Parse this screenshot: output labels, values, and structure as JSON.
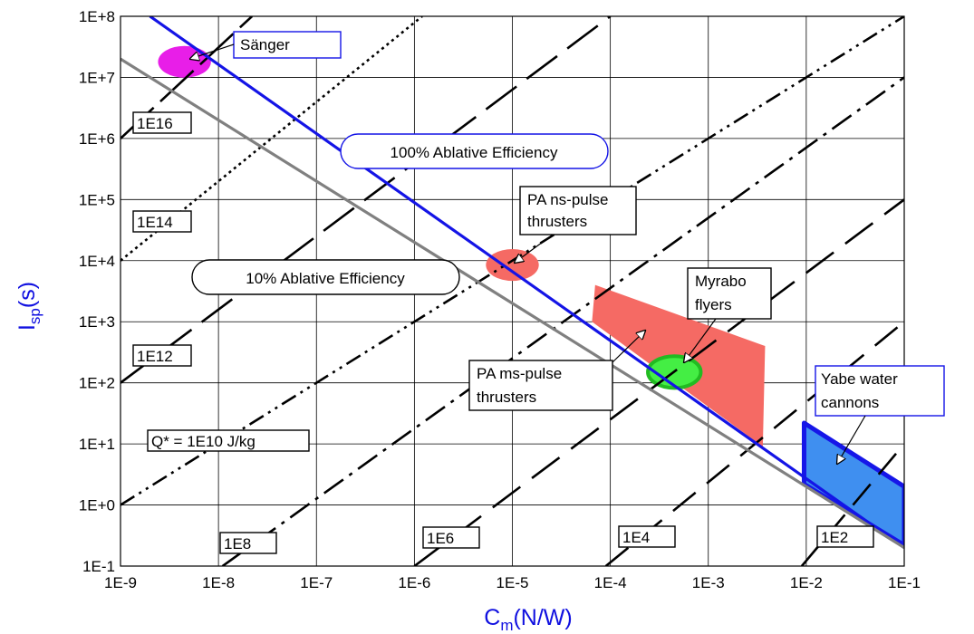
{
  "chart_data": {
    "type": "line",
    "x_scale": "log",
    "y_scale": "log",
    "xlim": [
      1e-09,
      0.1
    ],
    "ylim": [
      0.1,
      100000000
    ],
    "grid": true,
    "x_ticks": [
      "1E-9",
      "1E-8",
      "1E-7",
      "1E-6",
      "1E-5",
      "1E-4",
      "1E-3",
      "1E-2",
      "1E-1"
    ],
    "y_ticks": [
      "1E-1",
      "1E+0",
      "1E+1",
      "1E+2",
      "1E+3",
      "1E+4",
      "1E+5",
      "1E+6",
      "1E+7",
      "1E+8"
    ],
    "xlabel": {
      "main": "C",
      "sub": "m",
      "rest": "(N/W)"
    },
    "ylabel": {
      "main": "I",
      "sub": "sp",
      "rest": "(s)"
    },
    "colors": {
      "efficiency100": "#1414e6",
      "efficiency10": "#808080",
      "sanger": "#e81ee8",
      "pa_ns": "#f56a64",
      "pa_ms": "#f56a64",
      "myrabo": "#44ee44",
      "myrabo_edge": "#22bb22",
      "yabe": "#3f8ff0",
      "yabe_edge": "#1616e8",
      "q_lines": "#000000"
    },
    "efficiency_lines": [
      {
        "name": "100% Ablative Efficiency",
        "points": [
          [
            2e-09,
            100000000
          ],
          [
            0.1,
            0.2
          ]
        ]
      },
      {
        "name": "10% Ablative Efficiency",
        "points": [
          [
            1e-09,
            20000000
          ],
          [
            0.1,
            0.2
          ]
        ]
      }
    ],
    "q_star_lines": [
      {
        "label": "1E16",
        "points": [
          [
            1e-09,
            1000000
          ],
          [
            2.2e-08,
            100000000
          ]
        ],
        "dash": "50 10"
      },
      {
        "label": "1E14",
        "points": [
          [
            1e-09,
            10000
          ],
          [
            1.2e-06,
            100000000
          ]
        ],
        "dash": "3 4"
      },
      {
        "label": "1E12",
        "points": [
          [
            1e-09,
            100
          ],
          [
            0.0001,
            100000000
          ]
        ],
        "dash": "42 14"
      },
      {
        "label": "Q* = 1E10 J/kg",
        "points": [
          [
            1e-09,
            1
          ],
          [
            0.1,
            100000000
          ]
        ],
        "dash": "18 6 3 6 3 6"
      },
      {
        "label": "1E8",
        "points": [
          [
            1.1e-08,
            0.1
          ],
          [
            0.1,
            10000000
          ]
        ],
        "dash": "26 8 4 8"
      },
      {
        "label": "1E6",
        "points": [
          [
            1e-06,
            0.1
          ],
          [
            0.1,
            100000
          ]
        ],
        "dash": "38 16"
      },
      {
        "label": "1E4",
        "points": [
          [
            9e-05,
            0.1
          ],
          [
            0.1,
            1000
          ]
        ],
        "dash": "32 16"
      },
      {
        "label": "1E2",
        "points": [
          [
            0.009,
            0.1
          ],
          [
            0.1,
            10
          ]
        ],
        "dash": "30 14"
      }
    ],
    "regions": [
      {
        "name": "Sänger",
        "type": "ellipse",
        "center": [
          4.5e-09,
          18000000
        ],
        "rx_decades": 0.27,
        "ry_decades": 0.26
      },
      {
        "name": "PA ns-pulse thrusters",
        "type": "ellipse",
        "center": [
          1e-05,
          8500
        ],
        "rx_decades": 0.27,
        "ry_decades": 0.26
      },
      {
        "name": "PA ms-pulse thrusters",
        "type": "polygon",
        "points": [
          [
            7e-05,
            4000
          ],
          [
            0.0038,
            400
          ],
          [
            0.0036,
            9
          ],
          [
            6.5e-05,
            1000
          ]
        ]
      },
      {
        "name": "Myrabo flyers",
        "type": "ellipse",
        "center": [
          0.00045,
          150
        ],
        "rx_decades": 0.27,
        "ry_decades": 0.26
      },
      {
        "name": "Yabe water cannons",
        "type": "polygon",
        "points": [
          [
            0.0095,
            22
          ],
          [
            0.1,
            2
          ],
          [
            0.1,
            0.22
          ],
          [
            0.0095,
            2.2
          ]
        ]
      }
    ],
    "annotations": [
      {
        "text": "Sänger",
        "kind": "box-blue"
      },
      {
        "text": "100% Ablative Efficiency",
        "kind": "pill-blue"
      },
      {
        "text": "10% Ablative Efficiency",
        "kind": "pill-black"
      },
      {
        "text": "PA ns-pulse thrusters",
        "kind": "box-black"
      },
      {
        "text": "PA ms-pulse thrusters",
        "kind": "box-black"
      },
      {
        "text": "Myrabo flyers",
        "kind": "box-black"
      },
      {
        "text": "Yabe water cannons",
        "kind": "box-blue-text"
      }
    ]
  }
}
